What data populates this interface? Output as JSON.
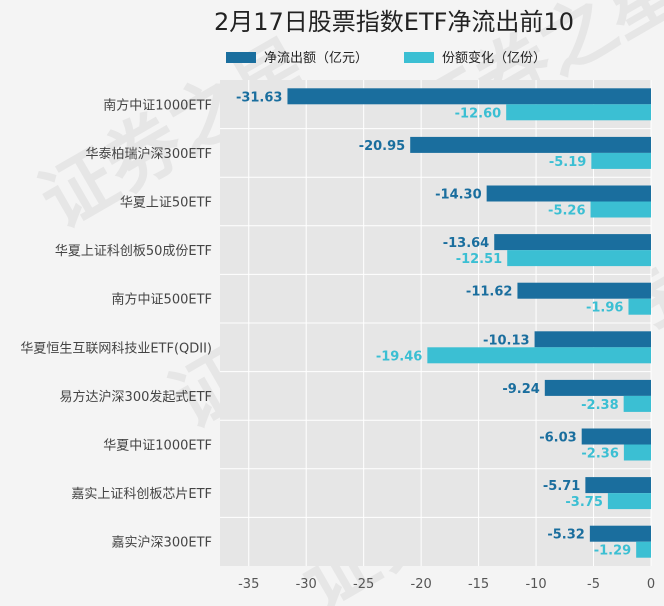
{
  "chart_data": {
    "type": "bar",
    "orientation": "horizontal",
    "title": "2月17日股票指数ETF净流出前10",
    "categories": [
      "南方中证1000ETF",
      "华泰柏瑞沪深300ETF",
      "华夏上证50ETF",
      "华夏上证科创板50成份ETF",
      "南方中证500ETF",
      "华夏恒生互联网科技业ETF(QDII)",
      "易方达沪深300发起式ETF",
      "华夏中证1000ETF",
      "嘉实上证科创板芯片ETF",
      "嘉实沪深300ETF"
    ],
    "series": [
      {
        "name": "净流出额（亿元）",
        "color": "#1a6e9e",
        "values": [
          -31.63,
          -20.95,
          -14.3,
          -13.64,
          -11.62,
          -10.13,
          -9.24,
          -6.03,
          -5.71,
          -5.32
        ],
        "labels": [
          "-31.63",
          "-20.95",
          "-14.30",
          "-13.64",
          "-11.62",
          "-10.13",
          "-9.24",
          "-6.03",
          "-5.71",
          "-5.32"
        ]
      },
      {
        "name": "份额变化（亿份）",
        "color": "#3bbfd3",
        "values": [
          -12.6,
          -5.19,
          -5.26,
          -12.51,
          -1.96,
          -19.46,
          -2.38,
          -2.36,
          -3.75,
          -1.29
        ],
        "labels": [
          "-12.60",
          "-5.19",
          "-5.26",
          "-12.51",
          "-1.96",
          "-19.46",
          "-2.38",
          "-2.36",
          "-3.75",
          "-1.29"
        ]
      }
    ],
    "xlim": [
      -37.5,
      0
    ],
    "xticks": [
      -35,
      -30,
      -25,
      -20,
      -15,
      -10,
      -5,
      0
    ],
    "xtick_labels": [
      "-35",
      "-30",
      "-25",
      "-20",
      "-15",
      "-10",
      "-5",
      "0"
    ],
    "grid": true,
    "legend_position": "top"
  },
  "watermark": "证券之星"
}
